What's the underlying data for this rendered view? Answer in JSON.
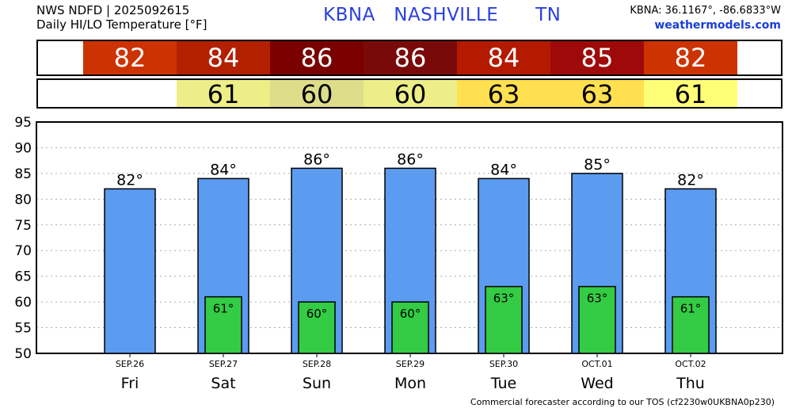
{
  "header": {
    "source_line": "NWS NDFD | 2025092615",
    "variable_line": "Daily HI/LO Temperature [°F]",
    "station_title": "KBNA   NASHVILLE      TN",
    "coords": "KBNA: 36.1167°, -86.6833°W",
    "site": "weathermodels.com"
  },
  "hi_strip": [
    {
      "text": "82",
      "color": "#cc3300"
    },
    {
      "text": "84",
      "color": "#b32000"
    },
    {
      "text": "86",
      "color": "#7a0000"
    },
    {
      "text": "86",
      "color": "#7a0a0a"
    },
    {
      "text": "84",
      "color": "#b31a00"
    },
    {
      "text": "85",
      "color": "#9e0a0a"
    },
    {
      "text": "82",
      "color": "#cc3300"
    }
  ],
  "lo_strip": [
    {
      "text": "",
      "color": "#ffffff"
    },
    {
      "text": "61",
      "color": "#eeee88"
    },
    {
      "text": "60",
      "color": "#dddd8a"
    },
    {
      "text": "60",
      "color": "#eeee88"
    },
    {
      "text": "63",
      "color": "#ffe050"
    },
    {
      "text": "63",
      "color": "#ffe050"
    },
    {
      "text": "61",
      "color": "#ffff77"
    }
  ],
  "chart_data": {
    "type": "bar",
    "categories": [
      "SEP.26",
      "SEP.27",
      "SEP.28",
      "SEP.29",
      "SEP.30",
      "OCT.01",
      "OCT.02"
    ],
    "day_labels": [
      "Fri",
      "Sat",
      "Sun",
      "Mon",
      "Tue",
      "Wed",
      "Thu"
    ],
    "series": [
      {
        "values": [
          82,
          84,
          86,
          86,
          84,
          85,
          82
        ],
        "labels": [
          "82°",
          "84°",
          "86°",
          "86°",
          "84°",
          "85°",
          "82°"
        ],
        "color": "#5b9bf0"
      },
      {
        "values": [
          null,
          61,
          60,
          60,
          63,
          63,
          61
        ],
        "labels": [
          "",
          "61°",
          "60°",
          "60°",
          "63°",
          "63°",
          "61°"
        ],
        "color": "#33cc44"
      }
    ],
    "ylim": [
      50,
      95
    ],
    "yticks": [
      50,
      55,
      60,
      65,
      70,
      75,
      80,
      85,
      90,
      95
    ],
    "grid": true
  },
  "footer": "Commercial forecaster according to our TOS (cf2230w0UKBNA0p230)"
}
